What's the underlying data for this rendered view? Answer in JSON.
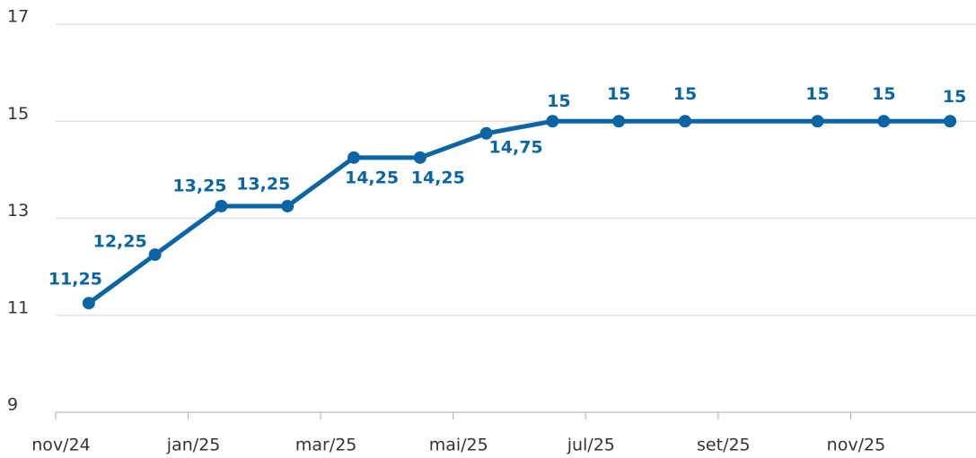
{
  "chart_data": {
    "type": "line",
    "x": [
      "2024-11",
      "2024-12",
      "2025-01",
      "2025-02",
      "2025-03",
      "2025-04",
      "2025-05",
      "2025-06",
      "2025-07",
      "2025-08",
      "2025-10",
      "2025-11",
      "2025-12"
    ],
    "series": [
      {
        "color": "#0b64a4",
        "values": [
          11.25,
          12.25,
          13.25,
          13.25,
          14.25,
          14.25,
          14.75,
          15,
          15,
          15,
          15,
          15,
          15
        ],
        "value_labels": [
          "11,25",
          "12,25",
          "13,25",
          "13,25",
          "14,25",
          "14,25",
          "14,75",
          "15",
          "15",
          "15",
          "15",
          "15",
          "15"
        ]
      }
    ],
    "xlim": [
      "2024-11",
      "2026-01"
    ],
    "xticks": [
      {
        "value": "2024-11",
        "label": "nov/24"
      },
      {
        "value": "2025-01",
        "label": "jan/25"
      },
      {
        "value": "2025-03",
        "label": "mar/25"
      },
      {
        "value": "2025-05",
        "label": "mai/25"
      },
      {
        "value": "2025-07",
        "label": "jul/25"
      },
      {
        "value": "2025-09",
        "label": "set/25"
      },
      {
        "value": "2025-11",
        "label": "nov/25"
      }
    ],
    "ylim": [
      9,
      17
    ],
    "yticks": [
      9,
      11,
      13,
      15,
      17
    ],
    "grid": true
  }
}
